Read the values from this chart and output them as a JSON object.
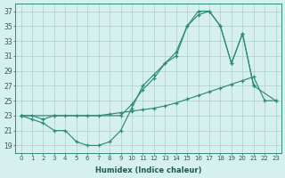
{
  "xlabel": "Humidex (Indice chaleur)",
  "yticks": [
    19,
    21,
    23,
    25,
    27,
    29,
    31,
    33,
    35,
    37
  ],
  "xticks": [
    0,
    1,
    2,
    3,
    4,
    5,
    6,
    7,
    8,
    9,
    10,
    11,
    12,
    13,
    14,
    15,
    16,
    17,
    18,
    19,
    20,
    21,
    22,
    23
  ],
  "line_color": "#2e8b7a",
  "bg_color": "#d6f0ee",
  "grid_color": "#b0ceca",
  "line1_x": [
    0,
    1,
    2,
    3,
    4,
    5,
    6,
    7,
    8,
    9,
    10,
    11,
    12,
    13,
    14,
    15,
    16,
    17,
    18,
    19,
    20,
    21
  ],
  "line1_y": [
    23,
    22.5,
    22,
    21,
    21,
    19.5,
    19,
    19,
    19.5,
    21,
    24,
    27,
    28.5,
    30,
    31,
    35,
    37,
    37,
    35,
    30,
    34,
    27
  ],
  "line2_x": [
    0,
    1,
    2,
    3,
    4,
    5,
    6,
    7,
    8,
    9,
    10,
    11,
    12,
    13,
    14,
    15,
    16,
    17,
    18,
    19,
    20,
    21,
    22,
    23
  ],
  "line2_y": [
    23,
    23,
    22.5,
    23,
    23,
    23,
    23,
    23,
    23.2,
    23.4,
    23.6,
    23.8,
    24,
    24.3,
    24.7,
    25.2,
    25.7,
    26.2,
    26.7,
    27.2,
    27.7,
    28.2,
    25,
    25
  ],
  "line3_x": [
    0,
    3,
    9,
    10,
    11,
    12,
    13,
    14,
    15,
    16,
    17,
    18,
    19,
    20,
    21,
    23
  ],
  "line3_y": [
    23,
    23,
    23,
    24.5,
    26.5,
    28,
    30,
    31.5,
    35,
    36.5,
    37,
    35,
    30,
    34,
    27,
    25
  ],
  "ylim": [
    18,
    38
  ],
  "xlim": [
    -0.5,
    23.5
  ]
}
